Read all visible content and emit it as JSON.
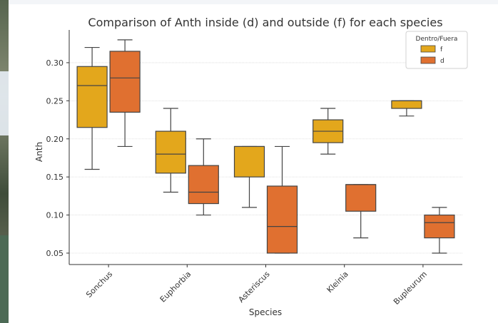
{
  "chart_data": {
    "type": "box",
    "title": "Comparison of Anth inside (d) and outside (f) for each species",
    "xlabel": "Species",
    "ylabel": "Anth",
    "categories": [
      "Sonchus",
      "Euphorbia",
      "Asteriscus",
      "Kleinia",
      "Bupleurum"
    ],
    "ylim": [
      0.035,
      0.343
    ],
    "yticks": [
      "0.05",
      "0.10",
      "0.15",
      "0.20",
      "0.25",
      "0.30"
    ],
    "grid": "horizontal",
    "legend": {
      "title": "Dentro/Fuera",
      "placement": "top-right"
    },
    "series": [
      {
        "name": "f",
        "color": "#e3a71c",
        "boxes": [
          {
            "min": 0.16,
            "q1": 0.215,
            "median": 0.27,
            "q3": 0.295,
            "max": 0.32
          },
          {
            "min": 0.13,
            "q1": 0.155,
            "median": 0.18,
            "q3": 0.21,
            "max": 0.24
          },
          {
            "min": 0.11,
            "q1": 0.15,
            "median": 0.19,
            "q3": 0.19,
            "max": 0.19
          },
          {
            "min": 0.18,
            "q1": 0.195,
            "median": 0.21,
            "q3": 0.225,
            "max": 0.24
          },
          {
            "min": 0.23,
            "q1": 0.24,
            "median": 0.25,
            "q3": 0.25,
            "max": 0.25
          }
        ]
      },
      {
        "name": "d",
        "color": "#e07030",
        "boxes": [
          {
            "min": 0.19,
            "q1": 0.235,
            "median": 0.28,
            "q3": 0.315,
            "max": 0.33
          },
          {
            "min": 0.1,
            "q1": 0.115,
            "median": 0.13,
            "q3": 0.165,
            "max": 0.2
          },
          {
            "min": 0.05,
            "q1": 0.05,
            "median": 0.085,
            "q3": 0.138,
            "max": 0.19
          },
          {
            "min": 0.07,
            "q1": 0.105,
            "median": 0.14,
            "q3": 0.14,
            "max": 0.14
          },
          {
            "min": 0.05,
            "q1": 0.07,
            "median": 0.09,
            "q3": 0.1,
            "max": 0.11
          }
        ]
      }
    ]
  }
}
